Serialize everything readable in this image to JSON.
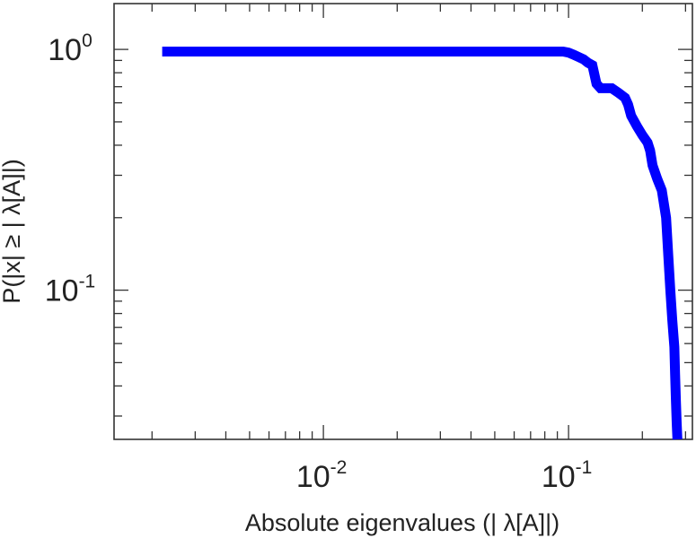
{
  "chart_data": {
    "type": "line",
    "title": "",
    "xlabel": "Absolute eigenvalues (|     λ[A]|)",
    "ylabel": "P(|x|  ≥ | λ[A]|)",
    "xscale": "log",
    "yscale": "log",
    "xlim": [
      0.0014,
      0.32
    ],
    "ylim": [
      0.024,
      1.55
    ],
    "grid": false,
    "legend": "none",
    "series": [
      {
        "color": "#0000ff",
        "x": [
          0.0022,
          0.095,
          0.1,
          0.105,
          0.11,
          0.115,
          0.12,
          0.125,
          0.13,
          0.135,
          0.14,
          0.15,
          0.16,
          0.17,
          0.175,
          0.18,
          0.19,
          0.2,
          0.21,
          0.215,
          0.22,
          0.23,
          0.24,
          0.25,
          0.255,
          0.26,
          0.265,
          0.27,
          0.272,
          0.274,
          0.276,
          0.278
        ],
        "y": [
          0.98,
          0.98,
          0.97,
          0.95,
          0.93,
          0.91,
          0.88,
          0.86,
          0.72,
          0.69,
          0.69,
          0.69,
          0.66,
          0.63,
          0.59,
          0.53,
          0.48,
          0.44,
          0.41,
          0.38,
          0.33,
          0.29,
          0.26,
          0.2,
          0.14,
          0.1,
          0.075,
          0.058,
          0.045,
          0.035,
          0.028,
          0.024
        ]
      }
    ],
    "x_ticks": [
      {
        "value": 0.01,
        "base": "10",
        "exp": "-2"
      },
      {
        "value": 0.1,
        "base": "10",
        "exp": "-1"
      }
    ],
    "y_ticks": [
      {
        "value": 1,
        "base": "10",
        "exp": "0"
      },
      {
        "value": 0.1,
        "base": "10",
        "exp": "-1"
      }
    ],
    "colors": {
      "line": "#0000ff",
      "axis": "#333333"
    }
  }
}
